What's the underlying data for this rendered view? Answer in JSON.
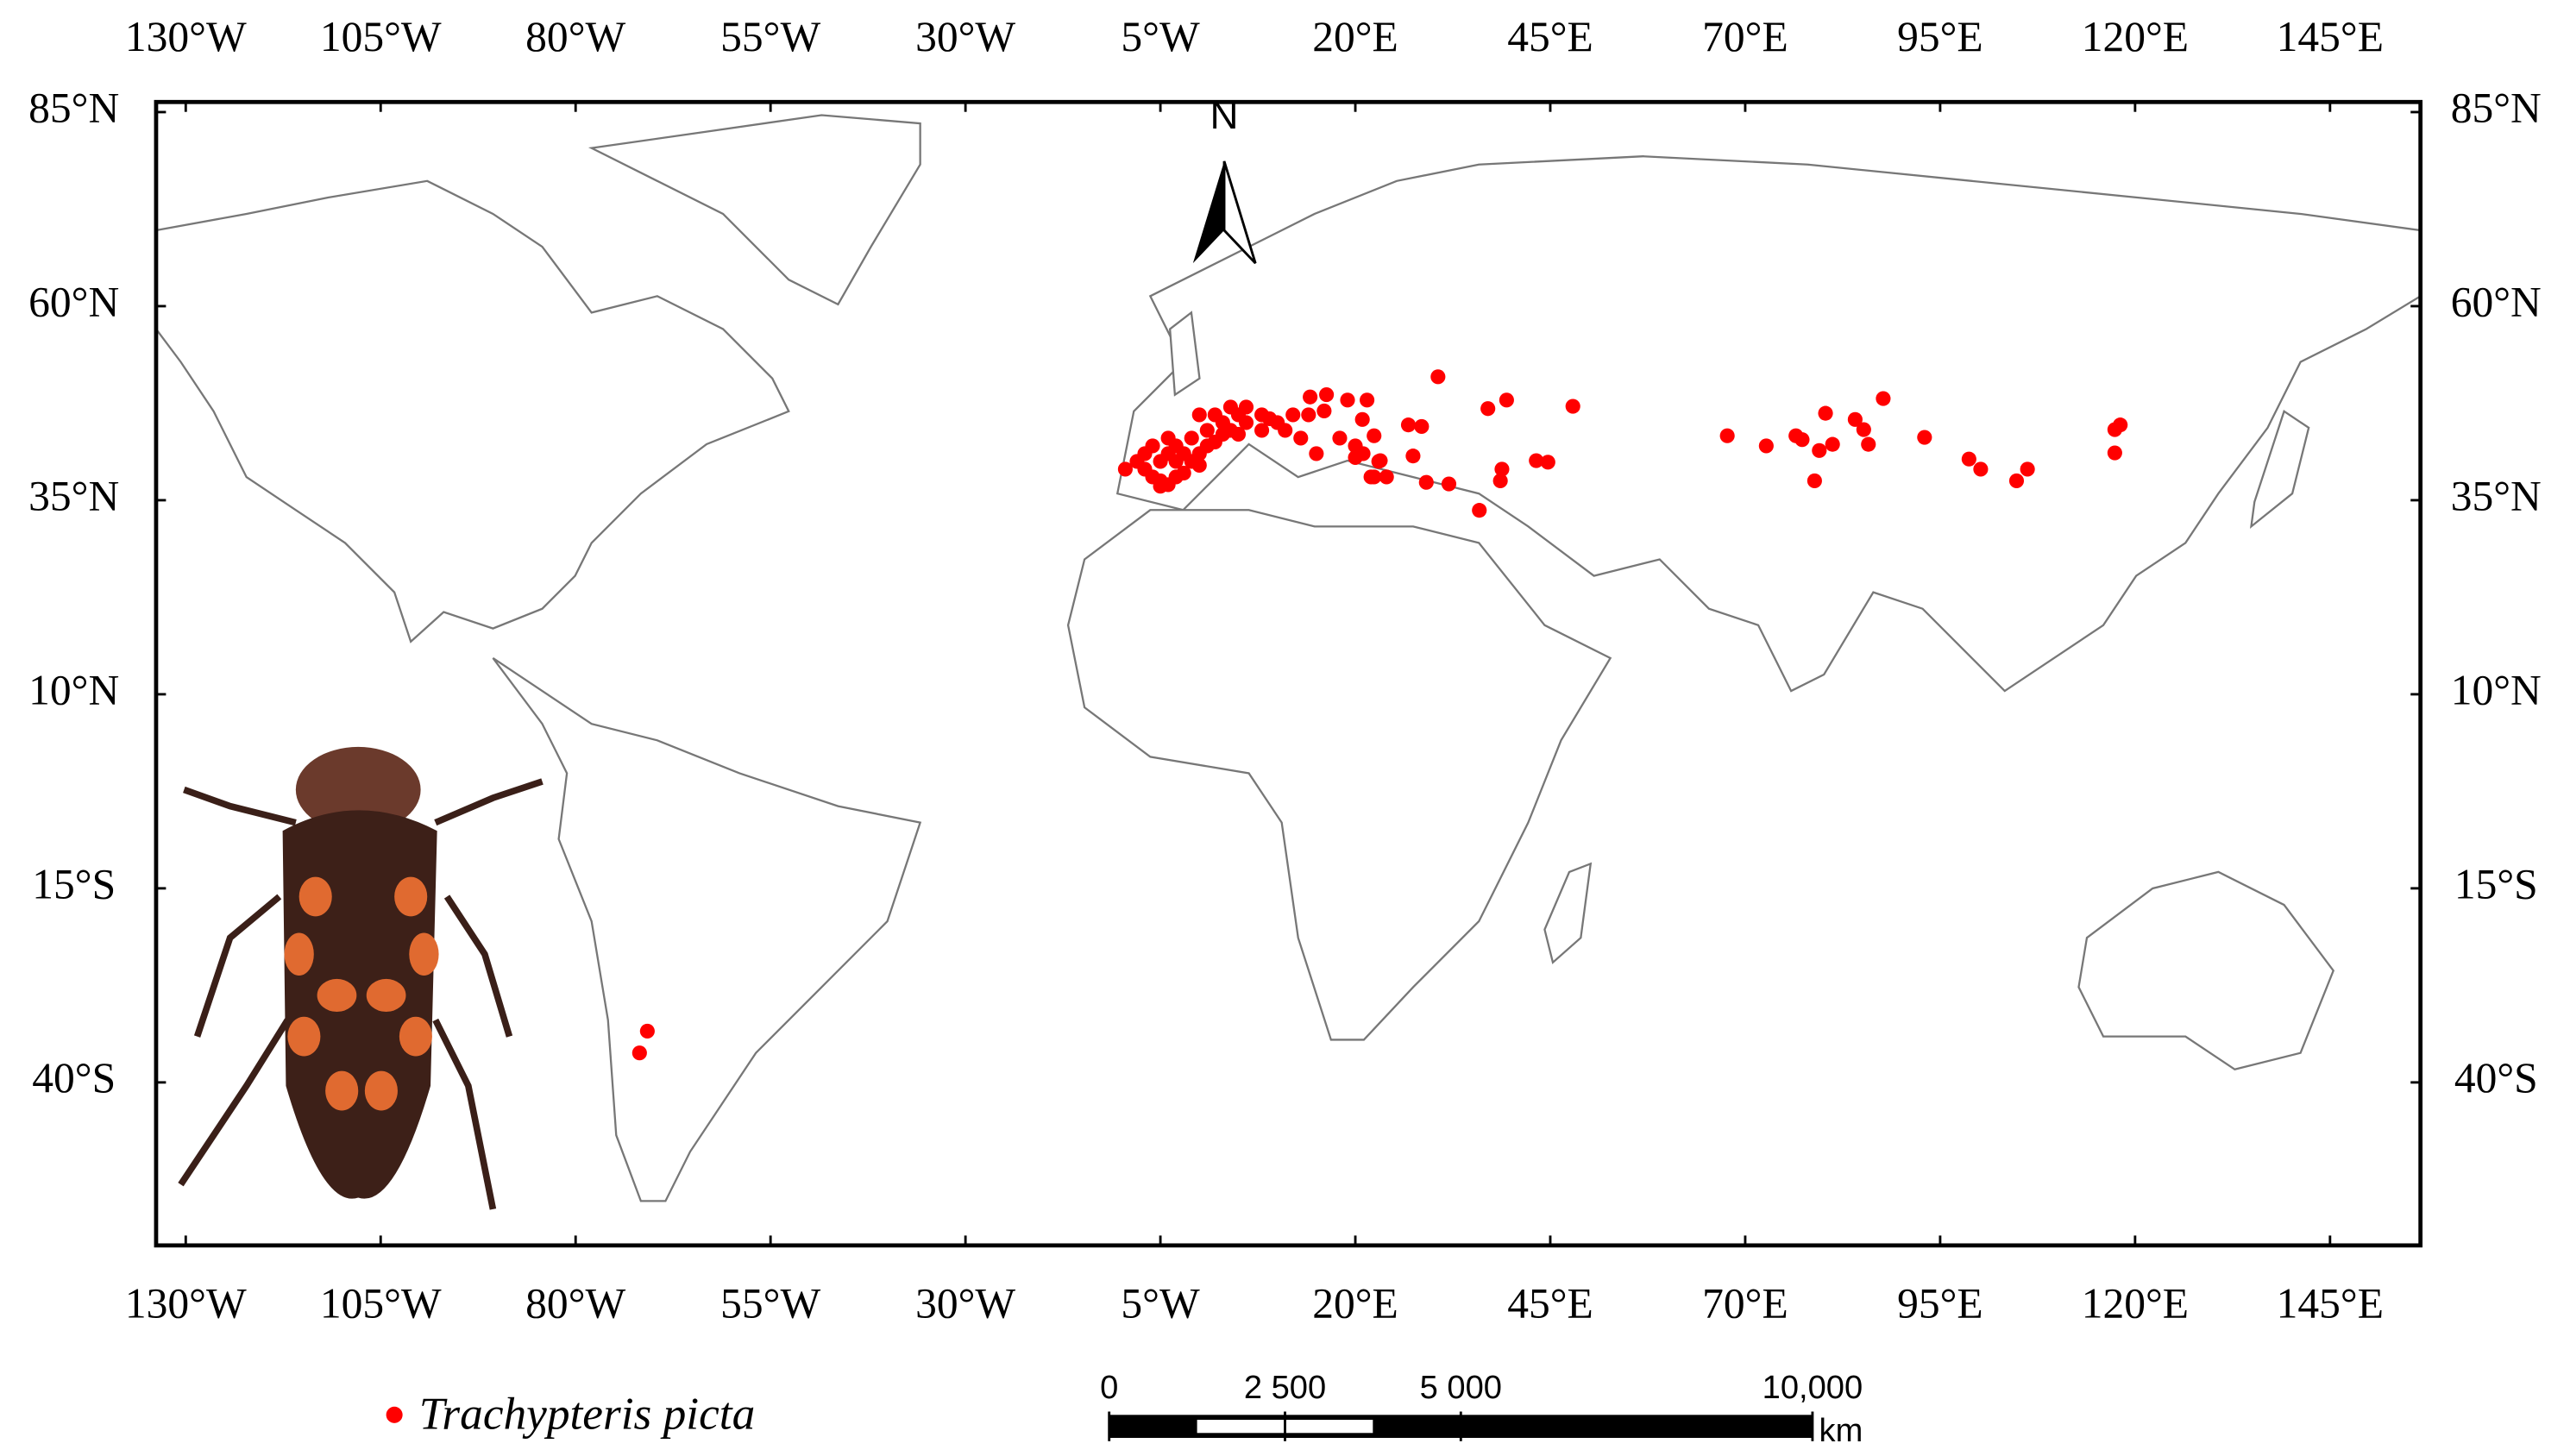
{
  "chart_data": {
    "type": "scatter",
    "xlim": [
      -133.8,
      156.6
    ],
    "ylim": [
      -61,
      86.3
    ],
    "xticks": [
      {
        "value": -130,
        "label": "130°W"
      },
      {
        "value": -105,
        "label": "105°W"
      },
      {
        "value": -80,
        "label": "80°W"
      },
      {
        "value": -55,
        "label": "55°W"
      },
      {
        "value": -30,
        "label": "30°W"
      },
      {
        "value": -5,
        "label": "5°W"
      },
      {
        "value": 20,
        "label": "20°E"
      },
      {
        "value": 45,
        "label": "45°E"
      },
      {
        "value": 70,
        "label": "70°E"
      },
      {
        "value": 95,
        "label": "95°E"
      },
      {
        "value": 120,
        "label": "120°E"
      },
      {
        "value": 145,
        "label": "145°E"
      }
    ],
    "yticks": [
      {
        "value": 85,
        "label": "85°N"
      },
      {
        "value": 60,
        "label": "60°N"
      },
      {
        "value": 35,
        "label": "35°N"
      },
      {
        "value": 10,
        "label": "10°N"
      },
      {
        "value": -15,
        "label": "15°S"
      },
      {
        "value": -40,
        "label": "40°S"
      }
    ],
    "north_label": "N",
    "series": [
      {
        "name": "Trachypteris picta",
        "color": "#ff0000",
        "x": [
          -71.8,
          -70.8,
          -9.5,
          -8,
          -7,
          -6,
          -5,
          -4,
          -3,
          -2,
          -1,
          0,
          -6,
          -5,
          -4,
          -3,
          -2,
          -5,
          -7,
          -3,
          1,
          2,
          -1,
          -4,
          0,
          1,
          3,
          4,
          2,
          5,
          6,
          0,
          4,
          6,
          3,
          5,
          8,
          10,
          12,
          14,
          11,
          13,
          15,
          9,
          8,
          16,
          14.2,
          16.3,
          19,
          21.5,
          20.9,
          22.4,
          22.4,
          23.2,
          18,
          20,
          21,
          23,
          22,
          24,
          20,
          30.6,
          39.4,
          37,
          47.9,
          43.2,
          44.7,
          38.6,
          38.8,
          35.9,
          27.4,
          29.1,
          32,
          26.8,
          28.5,
          67.7,
          72.7,
          76.5,
          77.3,
          78.9,
          79.5,
          81.2,
          80.3,
          84.1,
          85.2,
          85.8,
          87.7,
          93,
          98.7,
          100.2,
          104.8,
          106.2,
          117.4,
          118.1,
          117.4
        ],
        "y": [
          -36.2,
          -33.4,
          39,
          40,
          41,
          42,
          40,
          41,
          42,
          41,
          40,
          41,
          38,
          37.5,
          37,
          38,
          38.5,
          36.8,
          39,
          40,
          42,
          42.5,
          43,
          43,
          39.5,
          44,
          45,
          44,
          46,
          46,
          45,
          46,
          47,
          47,
          43.5,
          43.5,
          46,
          45,
          46,
          46,
          44,
          43,
          41,
          45.5,
          44,
          46.5,
          48.3,
          48.6,
          47.9,
          47.9,
          45.4,
          43.3,
          38,
          40.1,
          43,
          42,
          41,
          40,
          38,
          38,
          40.5,
          50.9,
          47.9,
          46.8,
          47.1,
          40.1,
          39.9,
          37.5,
          39,
          33.7,
          40.7,
          37.3,
          37.1,
          44.7,
          44.5,
          43.3,
          42,
          43.3,
          42.8,
          37.5,
          41.4,
          42.2,
          46.2,
          45.4,
          44.1,
          42.2,
          48.1,
          43.1,
          40.3,
          39,
          37.5,
          39,
          44.1,
          44.7,
          41.1
        ]
      }
    ],
    "scale_bar": {
      "unit": "km",
      "ticks": [
        {
          "value": 0,
          "label": "0"
        },
        {
          "value": 2500,
          "label": "2 500"
        },
        {
          "value": 5000,
          "label": "5 000"
        },
        {
          "value": 10000,
          "label": "10,000"
        }
      ]
    }
  }
}
